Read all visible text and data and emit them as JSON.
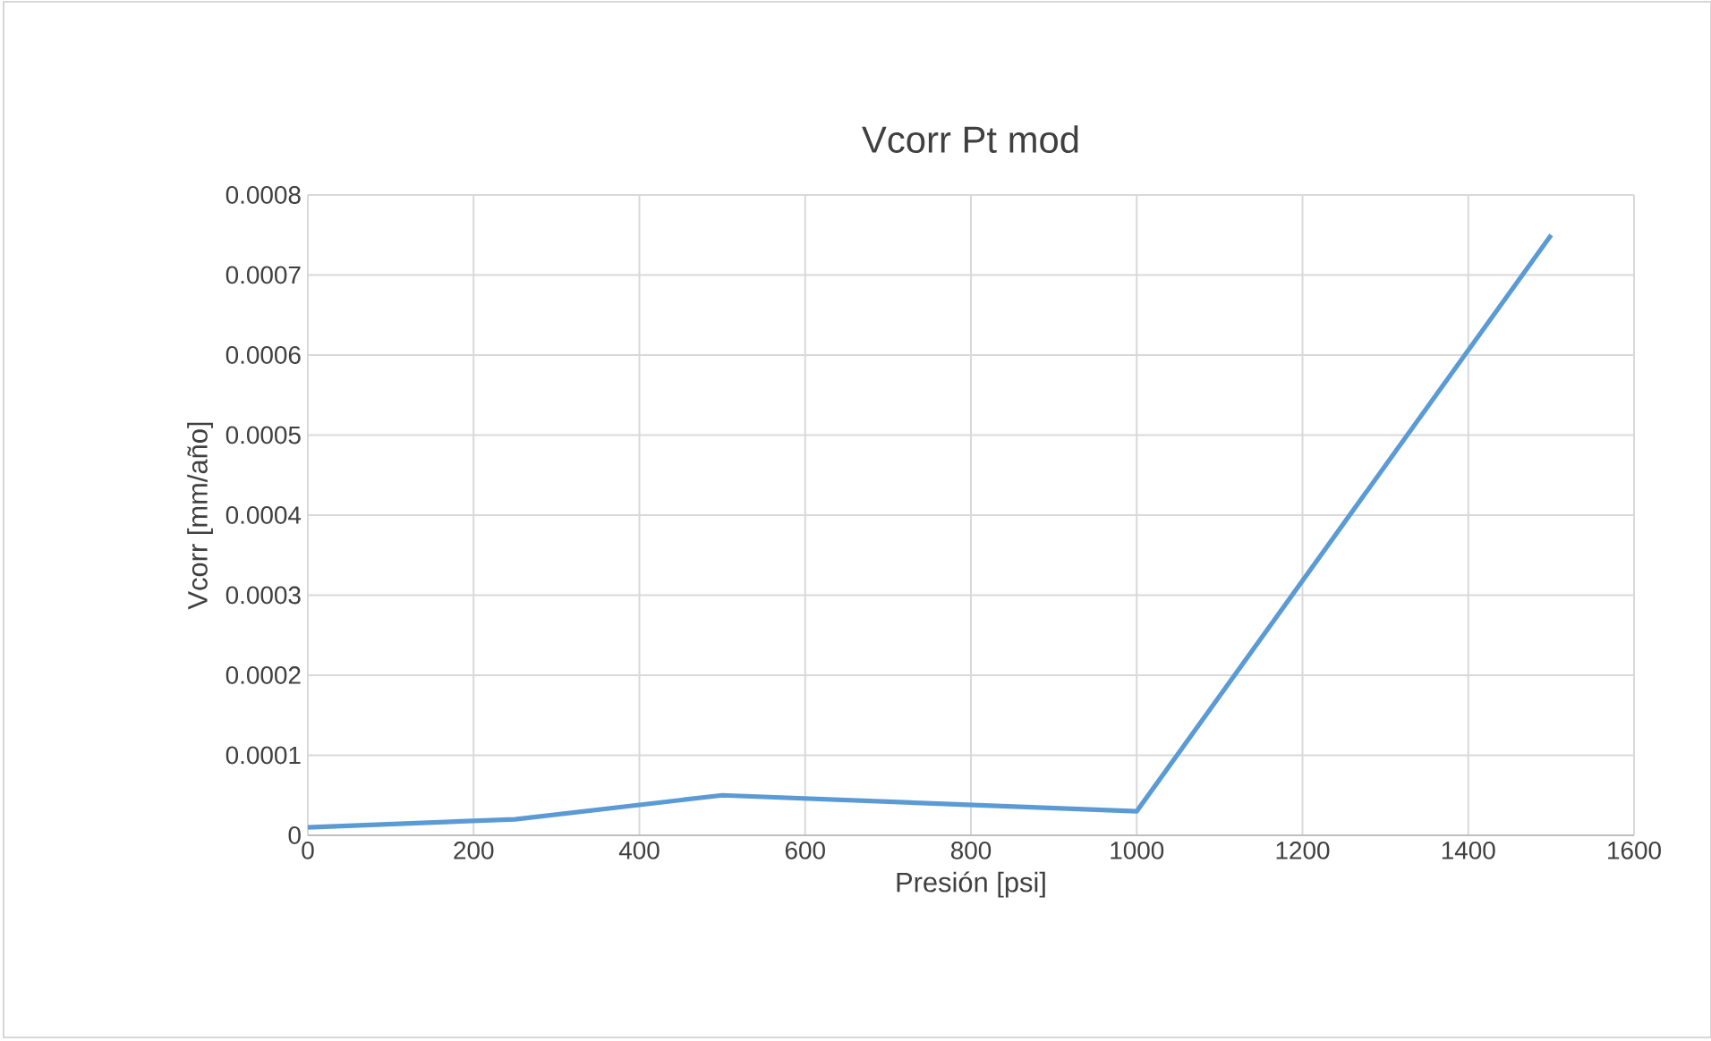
{
  "chart_data": {
    "type": "line",
    "title": "Vcorr Pt mod",
    "xlabel": "Presión [psi]",
    "ylabel": "Vcorr [mm/año]",
    "x": [
      0,
      250,
      500,
      1000,
      1500
    ],
    "series": [
      {
        "color": "#5b9bd5",
        "values": [
          1e-05,
          2e-05,
          5e-05,
          3e-05,
          0.00075
        ]
      }
    ],
    "xlim": [
      0,
      1600
    ],
    "xticks": [
      0,
      200,
      400,
      600,
      800,
      1000,
      1200,
      1400,
      1600
    ],
    "ylim": [
      0,
      0.0008
    ],
    "yticks": [
      0,
      0.0001,
      0.0002,
      0.0003,
      0.0004,
      0.0005,
      0.0006,
      0.0007,
      0.0008
    ],
    "grid": true,
    "marker": "none",
    "line_style": "solid"
  }
}
